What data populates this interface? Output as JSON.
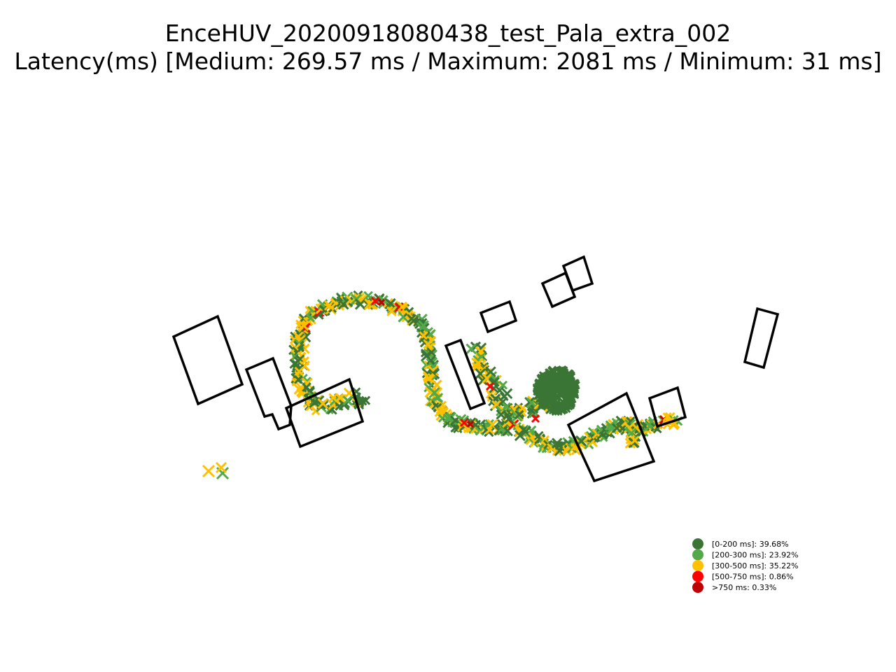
{
  "chart_data": {
    "type": "scatter",
    "title": "EnceHUV_20200918080438_test_Pala_extra_002",
    "subtitle": "Latency(ms) [Medium: 269.57 ms / Maximum: 2081 ms / Minimum: 31 ms]",
    "marker": "x",
    "axes_visible": false,
    "legend_position": "lower-right",
    "legend": [
      {
        "label": "[0-200 ms]: 39.68%",
        "color": "#3a7535",
        "share": 39.68
      },
      {
        "label": "[200-300 ms]: 23.92%",
        "color": "#53a849",
        "share": 23.92
      },
      {
        "label": "[300-500 ms]: 35.22%",
        "color": "#ffc000",
        "share": 35.22
      },
      {
        "label": "[500-750 ms]: 0.86%",
        "color": "#ff0000",
        "share": 0.86
      },
      {
        "label": ">750 ms: 0.33%",
        "color": "#c00000",
        "share": 0.33
      }
    ],
    "track_path": [
      [
        298,
        673
      ],
      [
        318,
        673
      ],
      [
        430,
        470
      ],
      [
        445,
        448
      ],
      [
        470,
        437
      ],
      [
        500,
        428
      ],
      [
        535,
        430
      ],
      [
        565,
        438
      ],
      [
        590,
        452
      ],
      [
        607,
        475
      ],
      [
        615,
        510
      ],
      [
        615,
        540
      ],
      [
        620,
        570
      ],
      [
        632,
        595
      ],
      [
        660,
        607
      ],
      [
        700,
        612
      ],
      [
        735,
        610
      ],
      [
        760,
        625
      ],
      [
        790,
        640
      ],
      [
        820,
        637
      ],
      [
        850,
        625
      ],
      [
        880,
        607
      ],
      [
        915,
        610
      ],
      [
        945,
        605
      ],
      [
        970,
        598
      ]
    ],
    "branch_left": [
      [
        430,
        470
      ],
      [
        425,
        500
      ],
      [
        428,
        530
      ],
      [
        435,
        560
      ],
      [
        455,
        582
      ],
      [
        480,
        575
      ],
      [
        505,
        568
      ],
      [
        525,
        575
      ]
    ],
    "branch_mid": [
      [
        680,
        500
      ],
      [
        695,
        530
      ],
      [
        710,
        560
      ],
      [
        720,
        590
      ],
      [
        740,
        590
      ],
      [
        765,
        578
      ],
      [
        790,
        565
      ]
    ],
    "branch_right": [
      [
        905,
        605
      ],
      [
        905,
        620
      ],
      [
        905,
        638
      ]
    ],
    "cluster_dense_green": {
      "cx": 795,
      "cy": 557,
      "r": 30
    },
    "buildings": [
      [
        [
          248,
          481
        ],
        [
          311,
          452
        ],
        [
          346,
          549
        ],
        [
          283,
          577
        ]
      ],
      [
        [
          352,
          528
        ],
        [
          390,
          512
        ],
        [
          416,
          580
        ],
        [
          414,
          607
        ],
        [
          398,
          613
        ],
        [
          389,
          592
        ],
        [
          378,
          595
        ]
      ],
      [
        [
          409,
          583
        ],
        [
          499,
          542
        ],
        [
          518,
          602
        ],
        [
          429,
          638
        ]
      ],
      [
        [
          637,
          494
        ],
        [
          658,
          486
        ],
        [
          692,
          576
        ],
        [
          672,
          584
        ]
      ],
      [
        [
          687,
          447
        ],
        [
          728,
          431
        ],
        [
          737,
          458
        ],
        [
          697,
          474
        ]
      ],
      [
        [
          775,
          405
        ],
        [
          808,
          390
        ],
        [
          821,
          424
        ],
        [
          789,
          438
        ]
      ],
      [
        [
          805,
          380
        ],
        [
          834,
          367
        ],
        [
          846,
          405
        ],
        [
          818,
          415
        ]
      ],
      [
        [
          812,
          607
        ],
        [
          895,
          562
        ],
        [
          934,
          659
        ],
        [
          849,
          687
        ]
      ],
      [
        [
          928,
          569
        ],
        [
          968,
          554
        ],
        [
          979,
          596
        ],
        [
          939,
          609
        ]
      ],
      [
        [
          1082,
          441
        ],
        [
          1111,
          449
        ],
        [
          1091,
          525
        ],
        [
          1064,
          517
        ]
      ]
    ]
  }
}
